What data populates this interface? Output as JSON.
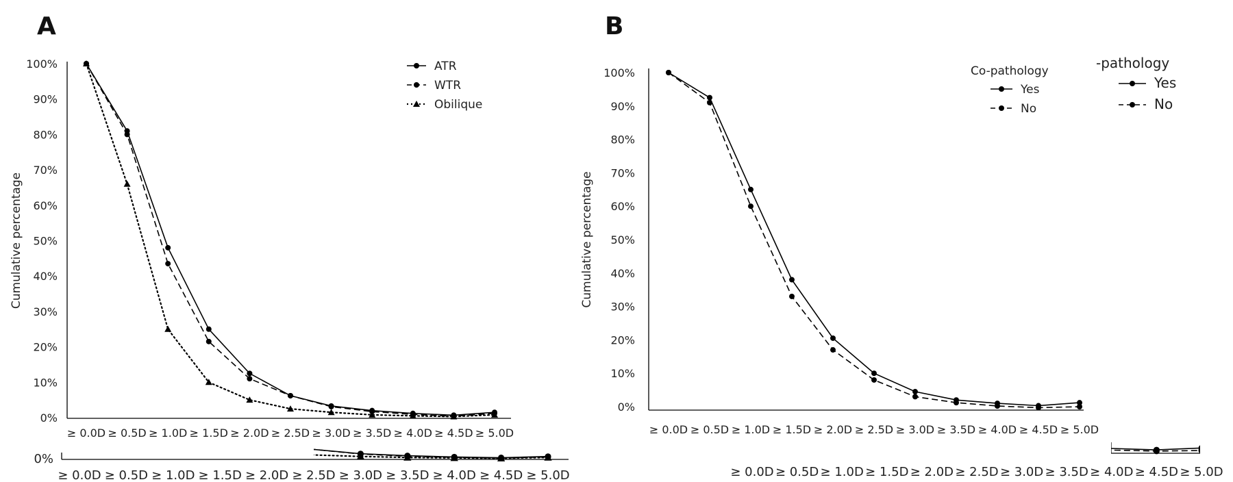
{
  "chart_data": [
    {
      "type": "line",
      "panel_label": "A",
      "ylabel": "Cumulative percentage",
      "x": [
        "≥ 0.0D",
        "≥ 0.5D",
        "≥ 1.0D",
        "≥ 1.5D",
        "≥ 2.0D",
        "≥ 2.5D",
        "≥ 3.0D",
        "≥ 3.5D",
        "≥ 4.0D",
        "≥ 4.5D",
        "≥ 5.0D"
      ],
      "yticks": [
        "0%",
        "10%",
        "20%",
        "30%",
        "40%",
        "50%",
        "60%",
        "70%",
        "80%",
        "90%",
        "100%"
      ],
      "ylim": [
        0,
        100
      ],
      "legend_position": "top-right",
      "series": [
        {
          "name": "ATR",
          "style": "solid",
          "marker": "circle",
          "values": [
            100,
            81,
            48,
            25,
            12.5,
            6.2,
            3.3,
            2,
            1.2,
            0.7,
            1.5
          ]
        },
        {
          "name": "WTR",
          "style": "dashed",
          "marker": "circle",
          "values": [
            100,
            80,
            43.5,
            21.5,
            11,
            6.2,
            3.1,
            1.7,
            0.9,
            0.4,
            1.2
          ]
        },
        {
          "name": "Obilique",
          "style": "dotted",
          "marker": "triangle",
          "values": [
            100,
            66,
            25,
            10,
            5,
            2.5,
            1.5,
            0.8,
            0.5,
            0.3,
            0.8
          ]
        }
      ],
      "inset_ytick": "0%"
    },
    {
      "type": "line",
      "panel_label": "B",
      "ylabel": "Cumulative percentage",
      "legend_title": "Co-pathology",
      "legend_title_fragment": "-pathology",
      "x": [
        "≥ 0.0D",
        "≥ 0.5D",
        "≥ 1.0D",
        "≥ 1.5D",
        "≥ 2.0D",
        "≥ 2.5D",
        "≥ 3.0D",
        "≥ 3.5D",
        "≥ 4.0D",
        "≥ 4.5D",
        "≥ 5.0D"
      ],
      "yticks": [
        "0%",
        "10%",
        "20%",
        "30%",
        "40%",
        "50%",
        "60%",
        "70%",
        "80%",
        "90%",
        "100%"
      ],
      "ylim": [
        0,
        100
      ],
      "legend_position": "top-right",
      "series": [
        {
          "name": "Yes",
          "style": "solid",
          "marker": "circle",
          "values": [
            100,
            92.5,
            65,
            38,
            20.5,
            10,
            4.5,
            2,
            1,
            0.3,
            1.2
          ]
        },
        {
          "name": "No",
          "style": "dashed",
          "marker": "circle",
          "values": [
            100,
            91,
            60,
            33,
            17,
            8,
            3,
            1.2,
            0.2,
            -0.3,
            0
          ]
        }
      ]
    }
  ]
}
